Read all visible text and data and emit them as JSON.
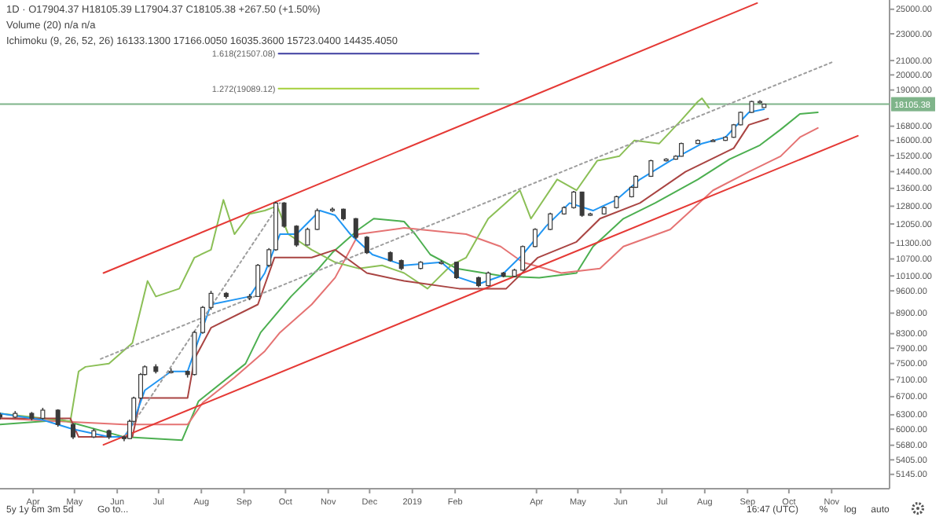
{
  "chart_data": {
    "type": "candlestick",
    "log": true,
    "grid": false,
    "xlim": [
      "2018-03-08",
      "2019-12-13"
    ],
    "xticks": [
      {
        "value": "2018-04-01",
        "label": "Apr"
      },
      {
        "value": "2018-05-01",
        "label": "May"
      },
      {
        "value": "2018-06-01",
        "label": "Jun"
      },
      {
        "value": "2018-07-01",
        "label": "Jul"
      },
      {
        "value": "2018-08-01",
        "label": "Aug"
      },
      {
        "value": "2018-09-01",
        "label": "Sep"
      },
      {
        "value": "2018-10-01",
        "label": "Oct"
      },
      {
        "value": "2018-11-01",
        "label": "Nov"
      },
      {
        "value": "2018-12-01",
        "label": "Dec"
      },
      {
        "value": "2019-01-01",
        "label": "2019"
      },
      {
        "value": "2019-02-01",
        "label": "Feb"
      },
      {
        "value": "2019-04-01",
        "label": "Apr"
      },
      {
        "value": "2019-05-01",
        "label": "May"
      },
      {
        "value": "2019-06-01",
        "label": "Jun"
      },
      {
        "value": "2019-07-01",
        "label": "Jul"
      },
      {
        "value": "2019-08-01",
        "label": "Aug"
      },
      {
        "value": "2019-09-01",
        "label": "Sep"
      },
      {
        "value": "2019-10-01",
        "label": "Oct"
      },
      {
        "value": "2019-11-01",
        "label": "Nov"
      }
    ],
    "ylim": [
      4900,
      25800
    ],
    "yticks": [
      {
        "value": 25000,
        "label": "25000.00"
      },
      {
        "value": 23000,
        "label": "23000.00"
      },
      {
        "value": 21000,
        "label": "21000.00"
      },
      {
        "value": 20000,
        "label": "20000.00"
      },
      {
        "value": 19000,
        "label": "19000.00"
      },
      {
        "value": 16800,
        "label": "16800.00"
      },
      {
        "value": 16000,
        "label": "16000.00"
      },
      {
        "value": 15200,
        "label": "15200.00"
      },
      {
        "value": 14400,
        "label": "14400.00"
      },
      {
        "value": 13600,
        "label": "13600.00"
      },
      {
        "value": 12800,
        "label": "12800.00"
      },
      {
        "value": 12050,
        "label": "12050.00"
      },
      {
        "value": 11300,
        "label": "11300.00"
      },
      {
        "value": 10700,
        "label": "10700.00"
      },
      {
        "value": 10100,
        "label": "10100.00"
      },
      {
        "value": 9600,
        "label": "9600.00"
      },
      {
        "value": 8900,
        "label": "8900.00"
      },
      {
        "value": 8300,
        "label": "8300.00"
      },
      {
        "value": 7900,
        "label": "7900.00"
      },
      {
        "value": 7500,
        "label": "7500.00"
      },
      {
        "value": 7100,
        "label": "7100.00"
      },
      {
        "value": 6700,
        "label": "6700.00"
      },
      {
        "value": 6300,
        "label": "6300.00"
      },
      {
        "value": 6000,
        "label": "6000.00"
      },
      {
        "value": 5680,
        "label": "5680.00"
      },
      {
        "value": 5405,
        "label": "5405.00"
      },
      {
        "value": 5145,
        "label": "5145.00"
      }
    ],
    "ref_lines": [
      {
        "axis": "y",
        "value": 18105.38,
        "label": "18105.38",
        "color": "#7fb48a"
      }
    ],
    "annotations": [
      "1D · O17904.37 H18105.39 L17904.37 C18105.38 +267.50 (+1.50%)",
      "Volume (20)  n/a  n/a",
      "Ichimoku (9, 26, 52, 26)  16133.1300  17166.0050  16035.3600  15723.0400  14435.4050",
      "5y  1y  6m  3m  5d",
      "Go to...",
      "16:47 (UTC)",
      "%",
      "log",
      "auto",
      {
        "text": "1.618(21507.08)",
        "x": "2018-09-26",
        "y": 21507.08
      },
      {
        "text": "1.272(19089.12)",
        "x": "2018-09-26",
        "y": 19089.12
      }
    ],
    "series": [
      {
        "type": "line",
        "color": "#4caf50",
        "x": [
          "2018-03-08",
          "2018-04-22",
          "2018-06-06",
          "2018-07-18",
          "2018-07-30",
          "2018-09-02",
          "2018-09-13",
          "2018-10-05",
          "2018-10-24",
          "2018-11-04",
          "2018-11-23",
          "2018-12-04",
          "2018-12-26",
          "2019-01-03",
          "2019-01-14",
          "2019-02-02",
          "2019-03-08",
          "2019-04-03",
          "2019-04-30",
          "2019-05-12",
          "2019-06-03",
          "2019-06-26",
          "2019-07-27",
          "2019-08-19",
          "2019-09-10",
          "2019-09-25",
          "2019-10-09",
          "2019-10-22"
        ],
        "values": [
          6094,
          6191,
          5843,
          5780,
          6600,
          7495,
          8334,
          9417,
          10300,
          10930,
          11830,
          12270,
          12150,
          11640,
          10860,
          10360,
          10090,
          10040,
          10200,
          11160,
          12270,
          12940,
          14020,
          15020,
          15750,
          16610,
          17520,
          17610
        ]
      },
      {
        "type": "line",
        "color": "#e57373",
        "x": [
          "2018-03-08",
          "2018-06-06",
          "2018-07-22",
          "2018-08-02",
          "2018-08-25",
          "2018-09-16",
          "2018-09-27",
          "2018-10-20",
          "2018-11-06",
          "2018-11-23",
          "2018-12-26",
          "2019-02-09",
          "2019-03-06",
          "2019-03-22",
          "2019-04-19",
          "2019-05-17",
          "2019-06-03",
          "2019-07-07",
          "2019-08-07",
          "2019-09-02",
          "2019-09-25",
          "2019-10-09",
          "2019-10-22"
        ],
        "values": [
          6225,
          6094,
          6094,
          6563,
          7150,
          7820,
          8334,
          9166,
          10040,
          11640,
          11890,
          11640,
          11160,
          10580,
          10200,
          10360,
          11160,
          11830,
          13510,
          14390,
          15170,
          16180,
          16700
        ]
      },
      {
        "type": "line",
        "color": "#8bbf56",
        "x": [
          "2018-03-08",
          "2018-04-28",
          "2018-05-04",
          "2018-05-09",
          "2018-05-26",
          "2018-06-12",
          "2018-06-23",
          "2018-06-29",
          "2018-07-16",
          "2018-07-27",
          "2018-08-08",
          "2018-08-17",
          "2018-08-25",
          "2018-09-05",
          "2018-09-16",
          "2018-09-25",
          "2018-10-03",
          "2018-10-20",
          "2018-11-06",
          "2018-11-23",
          "2018-12-10",
          "2018-12-26",
          "2019-01-12",
          "2019-01-29",
          "2019-02-09",
          "2019-02-25",
          "2019-03-20",
          "2019-03-28",
          "2019-04-16",
          "2019-04-30",
          "2019-05-15",
          "2019-05-31",
          "2019-06-11",
          "2019-06-29",
          "2019-07-15",
          "2019-07-27",
          "2019-07-30",
          "2019-08-04"
        ],
        "values": [
          6326,
          6161,
          7300,
          7415,
          7495,
          8040,
          9928,
          9417,
          9672,
          10750,
          11040,
          13080,
          11640,
          12470,
          12610,
          12810,
          11640,
          11040,
          10580,
          10360,
          10470,
          10200,
          9672,
          10470,
          10750,
          12270,
          13510,
          12270,
          14020,
          13510,
          14940,
          15170,
          16010,
          15840,
          17150,
          18270,
          18470,
          17890
        ]
      },
      {
        "type": "line",
        "color": "#a94442",
        "x": [
          "2018-03-08",
          "2018-04-28",
          "2018-05-04",
          "2018-06-12",
          "2018-06-18",
          "2018-07-22",
          "2018-07-27",
          "2018-08-08",
          "2018-09-11",
          "2018-09-23",
          "2018-10-20",
          "2018-11-06",
          "2018-11-29",
          "2018-12-26",
          "2019-02-04",
          "2019-03-10",
          "2019-04-02",
          "2019-04-30",
          "2019-05-17",
          "2019-06-15",
          "2019-07-18",
          "2019-08-22",
          "2019-09-02",
          "2019-09-16"
        ],
        "values": [
          6225,
          6225,
          5843,
          5843,
          6669,
          6669,
          7617,
          8467,
          9166,
          10750,
          10750,
          11040,
          10200,
          9928,
          9672,
          9672,
          10750,
          11340,
          12270,
          12940,
          14390,
          15590,
          16880,
          17240
        ]
      },
      {
        "type": "line",
        "color": "#2196f3",
        "x": [
          "2018-03-08",
          "2018-04-08",
          "2018-04-30",
          "2018-05-26",
          "2018-06-06",
          "2018-06-12",
          "2018-06-21",
          "2018-07-10",
          "2018-07-22",
          "2018-07-31",
          "2018-08-08",
          "2018-09-05",
          "2018-09-16",
          "2018-09-27",
          "2018-10-09",
          "2018-10-26",
          "2018-11-06",
          "2018-11-17",
          "2018-12-03",
          "2018-12-26",
          "2019-01-22",
          "2019-02-04",
          "2019-02-18",
          "2019-03-06",
          "2019-03-22",
          "2019-04-08",
          "2019-04-25",
          "2019-05-12",
          "2019-05-29",
          "2019-06-15",
          "2019-07-07",
          "2019-07-30",
          "2019-08-16",
          "2019-09-02",
          "2019-09-13"
        ],
        "values": [
          6326,
          6191,
          5999,
          5843,
          5843,
          6094,
          6846,
          7300,
          7300,
          8245,
          9166,
          9417,
          10200,
          11640,
          11640,
          12610,
          12410,
          11640,
          10860,
          10470,
          10580,
          10040,
          9824,
          10090,
          10860,
          11960,
          12940,
          12610,
          13080,
          14020,
          14940,
          15840,
          16180,
          17610,
          17800
        ]
      },
      {
        "type": "line",
        "color": "#e53935",
        "x": [
          "2018-05-22",
          "2019-09-08"
        ],
        "values": [
          10200,
          25530
        ]
      },
      {
        "type": "line",
        "color": "#e53935",
        "x": [
          "2018-05-22",
          "2019-11-20"
        ],
        "values": [
          5689,
          16260
        ]
      },
      {
        "type": "line",
        "color": "#9e9e9e",
        "line_style": "dotted",
        "x": [
          "2018-05-20",
          "2019-11-01"
        ],
        "values": [
          7617,
          20870
        ]
      },
      {
        "type": "line",
        "color": "#9e9e9e",
        "line_style": "dotted",
        "x": [
          "2018-06-06",
          "2018-09-27"
        ],
        "values": [
          5843,
          12940
        ]
      },
      {
        "type": "line",
        "color": "#3f3fa0",
        "x": [
          "2018-09-26",
          "2019-02-18"
        ],
        "values": [
          21507.08,
          21507.08
        ]
      },
      {
        "type": "line",
        "color": "#a5cf3a",
        "x": [
          "2018-09-26",
          "2019-02-18"
        ],
        "values": [
          19089.12,
          19089.12
        ]
      },
      {
        "color": "#3a3a3a",
        "x": [
          "2018-03-08",
          "2018-03-19",
          "2018-03-31",
          "2018-04-08",
          "2018-04-19",
          "2018-04-30",
          "2018-05-15",
          "2018-05-26",
          "2018-06-06",
          "2018-06-10",
          "2018-06-13",
          "2018-06-18",
          "2018-06-21",
          "2018-06-29",
          "2018-07-10",
          "2018-07-22",
          "2018-07-27",
          "2018-08-02",
          "2018-08-08",
          "2018-08-19",
          "2018-09-05",
          "2018-09-11",
          "2018-09-19",
          "2018-09-24",
          "2018-09-30",
          "2018-10-09",
          "2018-10-17",
          "2018-10-24",
          "2018-11-04",
          "2018-11-12",
          "2018-11-21",
          "2018-11-29",
          "2018-12-16",
          "2018-12-24",
          "2019-01-07",
          "2019-01-22",
          "2019-02-02",
          "2019-02-18",
          "2019-02-25",
          "2019-03-08",
          "2019-03-16",
          "2019-03-22",
          "2019-03-31",
          "2019-04-11",
          "2019-04-21",
          "2019-04-28",
          "2019-05-04",
          "2019-05-10",
          "2019-05-20",
          "2019-05-29",
          "2019-06-09",
          "2019-06-12",
          "2019-06-23",
          "2019-07-04",
          "2019-07-11",
          "2019-07-15",
          "2019-07-27",
          "2019-08-07",
          "2019-08-16",
          "2019-08-22",
          "2019-08-27",
          "2019-09-04",
          "2019-09-10",
          "2019-09-13"
        ],
        "ohlc": [
          [
            6300,
            6350,
            6200,
            6250
          ],
          [
            6250,
            6380,
            6230,
            6330
          ],
          [
            6330,
            6360,
            6180,
            6225
          ],
          [
            6225,
            6450,
            6200,
            6400
          ],
          [
            6400,
            6420,
            6050,
            6094
          ],
          [
            6094,
            6120,
            5800,
            5843
          ],
          [
            5843,
            6010,
            5820,
            5968
          ],
          [
            5968,
            5990,
            5800,
            5843
          ],
          [
            5843,
            5870,
            5760,
            5810
          ],
          [
            5810,
            6200,
            5800,
            6161
          ],
          [
            6161,
            6700,
            6150,
            6669
          ],
          [
            6669,
            7260,
            6650,
            7224
          ],
          [
            7224,
            7450,
            7200,
            7415
          ],
          [
            7415,
            7480,
            7250,
            7300
          ],
          [
            7300,
            7380,
            7250,
            7300
          ],
          [
            7300,
            7320,
            7150,
            7224
          ],
          [
            7224,
            8380,
            7200,
            8334
          ],
          [
            8334,
            9120,
            8300,
            9074
          ],
          [
            9074,
            9600,
            9000,
            9518
          ],
          [
            9518,
            9560,
            9350,
            9417
          ],
          [
            9417,
            9500,
            9300,
            9417
          ],
          [
            9417,
            10520,
            9400,
            10470
          ],
          [
            10470,
            11100,
            10400,
            11040
          ],
          [
            11040,
            13000,
            11000,
            12940
          ],
          [
            12940,
            12980,
            11900,
            11960
          ],
          [
            11960,
            12000,
            11150,
            11220
          ],
          [
            11220,
            11900,
            11200,
            11830
          ],
          [
            11830,
            12700,
            11800,
            12610
          ],
          [
            12610,
            12750,
            12550,
            12670
          ],
          [
            12670,
            12700,
            12200,
            12270
          ],
          [
            12270,
            12300,
            11450,
            11520
          ],
          [
            11520,
            11560,
            10880,
            10930
          ],
          [
            10930,
            10980,
            10600,
            10640
          ],
          [
            10640,
            10680,
            10300,
            10360
          ],
          [
            10360,
            10620,
            10330,
            10580
          ],
          [
            10580,
            10650,
            10500,
            10580
          ],
          [
            10580,
            10600,
            10000,
            10040
          ],
          [
            10040,
            10080,
            9720,
            9773
          ],
          [
            9773,
            10250,
            9750,
            10200
          ],
          [
            10200,
            10240,
            10050,
            10090
          ],
          [
            10090,
            10350,
            10060,
            10300
          ],
          [
            10300,
            11200,
            10280,
            11160
          ],
          [
            11160,
            11880,
            11140,
            11830
          ],
          [
            11830,
            12520,
            11800,
            12470
          ],
          [
            12470,
            12800,
            12440,
            12740
          ],
          [
            12740,
            13480,
            12700,
            13430
          ],
          [
            13430,
            13450,
            12350,
            12410
          ],
          [
            12410,
            12520,
            12380,
            12470
          ],
          [
            12470,
            12790,
            12440,
            12740
          ],
          [
            12740,
            13270,
            12700,
            13220
          ],
          [
            13220,
            13700,
            13190,
            13650
          ],
          [
            13650,
            14220,
            13620,
            14170
          ],
          [
            14170,
            14990,
            14140,
            14940
          ],
          [
            14940,
            15070,
            14900,
            15020
          ],
          [
            15020,
            15220,
            14990,
            15170
          ],
          [
            15170,
            15890,
            15150,
            15840
          ],
          [
            15840,
            16060,
            15820,
            16010
          ],
          [
            16010,
            16080,
            15950,
            16010
          ],
          [
            16010,
            16230,
            15990,
            16180
          ],
          [
            16180,
            16930,
            16150,
            16880
          ],
          [
            16880,
            17660,
            16850,
            17610
          ],
          [
            17610,
            18320,
            17580,
            18270
          ],
          [
            18270,
            18350,
            18150,
            18270
          ],
          [
            17904.37,
            18105.39,
            17904.37,
            18105.38
          ]
        ]
      }
    ]
  }
}
